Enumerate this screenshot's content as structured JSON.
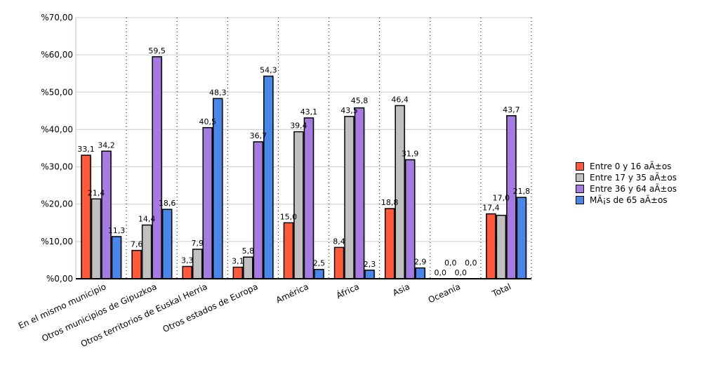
{
  "chart_data": {
    "type": "bar",
    "title": "",
    "xlabel": "",
    "ylabel": "",
    "ylim": [
      0,
      70
    ],
    "yticks": [
      "%0,00",
      "%10,00",
      "%20,00",
      "%30,00",
      "%40,00",
      "%50,00",
      "%60,00",
      "%70,00"
    ],
    "categories": [
      "En el mismo municipio",
      "Otros municipios de Gipuzkoa",
      "Otros territorios de Euskal Herria",
      "Otros estados de Europa",
      "América",
      "África",
      "Asia",
      "Oceanía",
      "Total"
    ],
    "series": [
      {
        "name": "Entre 0 y 16 aÃ±os",
        "color": "#ff5a3c",
        "values": [
          33.1,
          7.6,
          3.3,
          3.1,
          15.0,
          8.4,
          18.8,
          0.0,
          17.4
        ]
      },
      {
        "name": "Entre 17 y 35 aÃ±os",
        "color": "#c0c0c0",
        "values": [
          21.4,
          14.4,
          7.9,
          5.8,
          39.4,
          43.5,
          46.4,
          0.0,
          17.0
        ]
      },
      {
        "name": "Entre 36 y 64 aÃ±os",
        "color": "#a57be0",
        "values": [
          34.2,
          59.5,
          40.5,
          36.7,
          43.1,
          45.8,
          31.9,
          0.0,
          43.7
        ]
      },
      {
        "name": "MÃ¡s de 65 aÃ±os",
        "color": "#4a86e8",
        "values": [
          11.3,
          18.6,
          48.3,
          54.3,
          2.5,
          2.3,
          2.9,
          0.0,
          21.8
        ]
      }
    ],
    "grid": true,
    "legend": "right"
  }
}
